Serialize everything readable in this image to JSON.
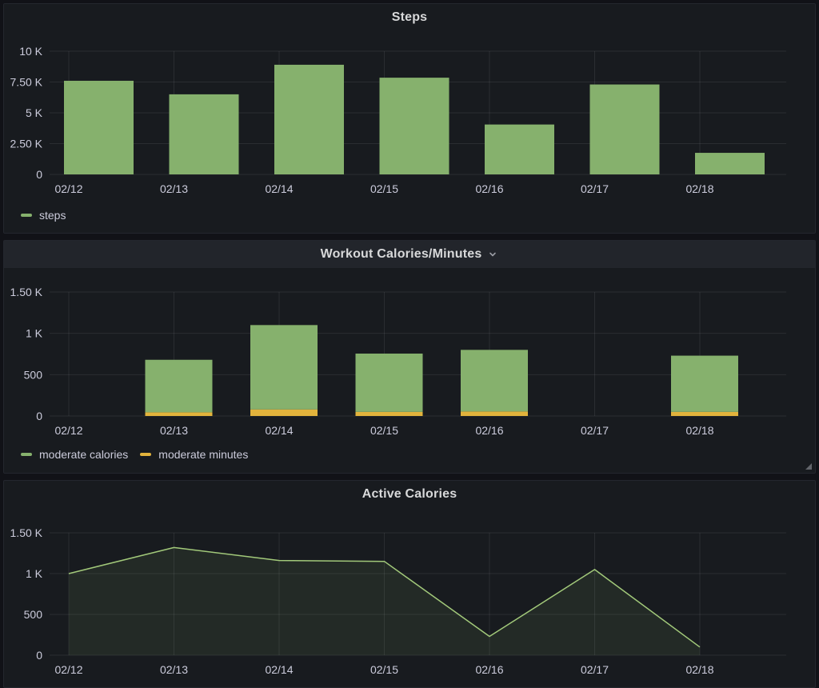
{
  "page": {
    "bg": "#111217",
    "panel_bg": "#181b1f",
    "panel_border": "#24272e",
    "header_hover_bg": "#22252b",
    "title_color": "#d8d9da",
    "tick_text_color": "#ccccdc",
    "grid_color": "rgba(204,204,220,0.10)",
    "green": "#86b16d",
    "yellow": "#e2b33c"
  },
  "panels": {
    "steps": {
      "title": "Steps",
      "legend": [
        {
          "label": "steps",
          "color": "#86b16d"
        }
      ]
    },
    "workout": {
      "title": "Workout Calories/Minutes",
      "header_icon": "chevron-down",
      "legend": [
        {
          "label": "moderate calories",
          "color": "#86b16d"
        },
        {
          "label": "moderate minutes",
          "color": "#e2b33c"
        }
      ]
    },
    "active": {
      "title": "Active Calories"
    }
  },
  "chart_data": [
    {
      "id": "chart-steps",
      "type": "bar",
      "title": "Steps",
      "categories": [
        "02/12",
        "02/13",
        "02/14",
        "02/15",
        "02/16",
        "02/17",
        "02/18"
      ],
      "series": [
        {
          "name": "steps",
          "color": "#86b16d",
          "values": [
            7600,
            6500,
            8900,
            7850,
            4050,
            7300,
            1750
          ]
        }
      ],
      "ylim": [
        0,
        10000
      ],
      "yticks": [
        {
          "v": 0,
          "label": "0"
        },
        {
          "v": 2500,
          "label": "2.50 K"
        },
        {
          "v": 5000,
          "label": "5 K"
        },
        {
          "v": 7500,
          "label": "7.50 K"
        },
        {
          "v": 10000,
          "label": "10 K"
        }
      ],
      "grid": true,
      "legend_position": "bottom-left"
    },
    {
      "id": "chart-workout",
      "type": "bar-stacked",
      "title": "Workout Calories/Minutes",
      "categories": [
        "02/12",
        "02/13",
        "02/14",
        "02/15",
        "02/16",
        "02/17",
        "02/18"
      ],
      "series": [
        {
          "name": "moderate calories",
          "color": "#86b16d",
          "values": [
            null,
            635,
            1020,
            705,
            745,
            null,
            680
          ]
        },
        {
          "name": "moderate minutes",
          "color": "#e2b33c",
          "values": [
            null,
            45,
            80,
            50,
            55,
            null,
            50
          ]
        }
      ],
      "ylim": [
        0,
        1500
      ],
      "yticks": [
        {
          "v": 0,
          "label": "0"
        },
        {
          "v": 500,
          "label": "500"
        },
        {
          "v": 1000,
          "label": "1 K"
        },
        {
          "v": 1500,
          "label": "1.50 K"
        }
      ],
      "grid": true,
      "legend_position": "bottom-left"
    },
    {
      "id": "chart-active",
      "type": "area",
      "title": "Active Calories",
      "categories": [
        "02/12",
        "02/13",
        "02/14",
        "02/15",
        "02/16",
        "02/17",
        "02/18"
      ],
      "values": [
        1000,
        1320,
        1160,
        1150,
        230,
        1050,
        100
      ],
      "line_color": "#a2c97a",
      "fill_color": "rgba(134,177,110,0.10)",
      "ylim": [
        0,
        1500
      ],
      "yticks": [
        {
          "v": 0,
          "label": "0"
        },
        {
          "v": 500,
          "label": "500"
        },
        {
          "v": 1000,
          "label": "1 K"
        },
        {
          "v": 1500,
          "label": "1.50 K"
        }
      ],
      "grid": true,
      "legend_position": "none"
    }
  ]
}
